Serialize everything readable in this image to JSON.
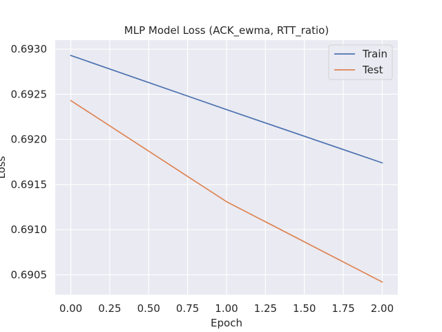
{
  "chart_data": {
    "type": "line",
    "title": "MLP Model Loss (ACK_ewma, RTT_ratio)",
    "xlabel": "Epoch",
    "ylabel": "Loss",
    "xlim": [
      -0.1,
      2.1
    ],
    "ylim": [
      0.69028,
      0.6931
    ],
    "x_ticks": [
      0.0,
      0.25,
      0.5,
      0.75,
      1.0,
      1.25,
      1.5,
      1.75,
      2.0
    ],
    "x_tick_labels": [
      "0.00",
      "0.25",
      "0.50",
      "0.75",
      "1.00",
      "1.25",
      "1.50",
      "1.75",
      "2.00"
    ],
    "y_ticks": [
      0.6905,
      0.691,
      0.6915,
      0.692,
      0.6925,
      0.693
    ],
    "y_tick_labels": [
      "0.6905",
      "0.6910",
      "0.6915",
      "0.6920",
      "0.6925",
      "0.6930"
    ],
    "x": [
      0,
      1,
      2
    ],
    "series": [
      {
        "name": "Train",
        "color": "#4c72b0",
        "values": [
          0.69293,
          0.69233,
          0.69174
        ]
      },
      {
        "name": "Test",
        "color": "#dd8452",
        "values": [
          0.69243,
          0.69131,
          0.69042
        ]
      }
    ],
    "grid": true,
    "legend_position": "top-right",
    "colors": {
      "plot_background": "#eaeaf2",
      "grid": "#ffffff"
    }
  }
}
